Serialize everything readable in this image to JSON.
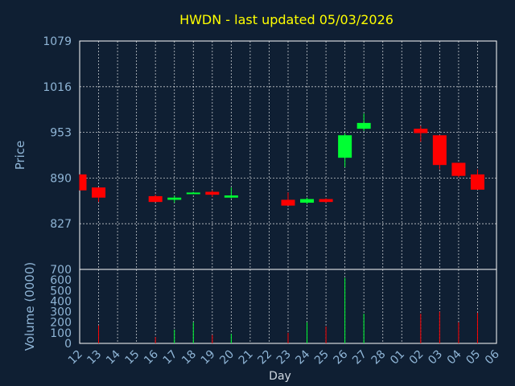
{
  "chart_data": {
    "type": "candlestick",
    "title": "HWDN - last updated 05/03/2026",
    "xlabel": "Day",
    "ylabel_price": "Price",
    "ylabel_volume": "Volume (0000)",
    "x_ticks": [
      "12",
      "13",
      "14",
      "15",
      "16",
      "17",
      "18",
      "19",
      "20",
      "21",
      "22",
      "23",
      "24",
      "25",
      "26",
      "27",
      "28",
      "01",
      "02",
      "03",
      "04",
      "05",
      "06"
    ],
    "price_ylim": [
      764,
      1079
    ],
    "price_ticks": [
      827,
      890,
      953,
      1016,
      1079
    ],
    "volume_ylim": [
      0,
      700
    ],
    "volume_ticks": [
      0,
      100,
      200,
      300,
      400,
      500,
      600,
      700
    ],
    "colors": {
      "up": "#00ff33",
      "down": "#ff0000",
      "background": "#0f1f33",
      "title": "#ffff00",
      "axis_text": "#8fb5d6"
    },
    "candles": [
      {
        "day": "12",
        "open": 895,
        "close": 873,
        "high": 895,
        "low": 873,
        "volume": 0
      },
      {
        "day": "13",
        "open": 877,
        "close": 863,
        "high": 877,
        "low": 857,
        "volume": 170
      },
      {
        "day": "16",
        "open": 865,
        "close": 857,
        "high": 867,
        "low": 857,
        "volume": 60
      },
      {
        "day": "17",
        "open": 860,
        "close": 863,
        "high": 866,
        "low": 856,
        "volume": 130
      },
      {
        "day": "18",
        "open": 869,
        "close": 870,
        "high": 871,
        "low": 869,
        "volume": 200
      },
      {
        "day": "19",
        "open": 871,
        "close": 867,
        "high": 873,
        "low": 864,
        "volume": 80
      },
      {
        "day": "20",
        "open": 863,
        "close": 866,
        "high": 877,
        "low": 862,
        "volume": 90
      },
      {
        "day": "23",
        "open": 860,
        "close": 852,
        "high": 870,
        "low": 852,
        "volume": 100
      },
      {
        "day": "24",
        "open": 856,
        "close": 861,
        "high": 863,
        "low": 854,
        "volume": 200
      },
      {
        "day": "25",
        "open": 861,
        "close": 857,
        "high": 862,
        "low": 856,
        "volume": 160
      },
      {
        "day": "26",
        "open": 918,
        "close": 949,
        "high": 952,
        "low": 905,
        "volume": 620
      },
      {
        "day": "27",
        "open": 958,
        "close": 966,
        "high": 979,
        "low": 955,
        "volume": 280
      },
      {
        "day": "02",
        "open": 958,
        "close": 952,
        "high": 962,
        "low": 940,
        "volume": 280
      },
      {
        "day": "03",
        "open": 949,
        "close": 908,
        "high": 949,
        "low": 902,
        "volume": 300
      },
      {
        "day": "04",
        "open": 911,
        "close": 893,
        "high": 911,
        "low": 891,
        "volume": 200
      },
      {
        "day": "05",
        "open": 895,
        "close": 874,
        "high": 902,
        "low": 874,
        "volume": 290
      }
    ]
  }
}
